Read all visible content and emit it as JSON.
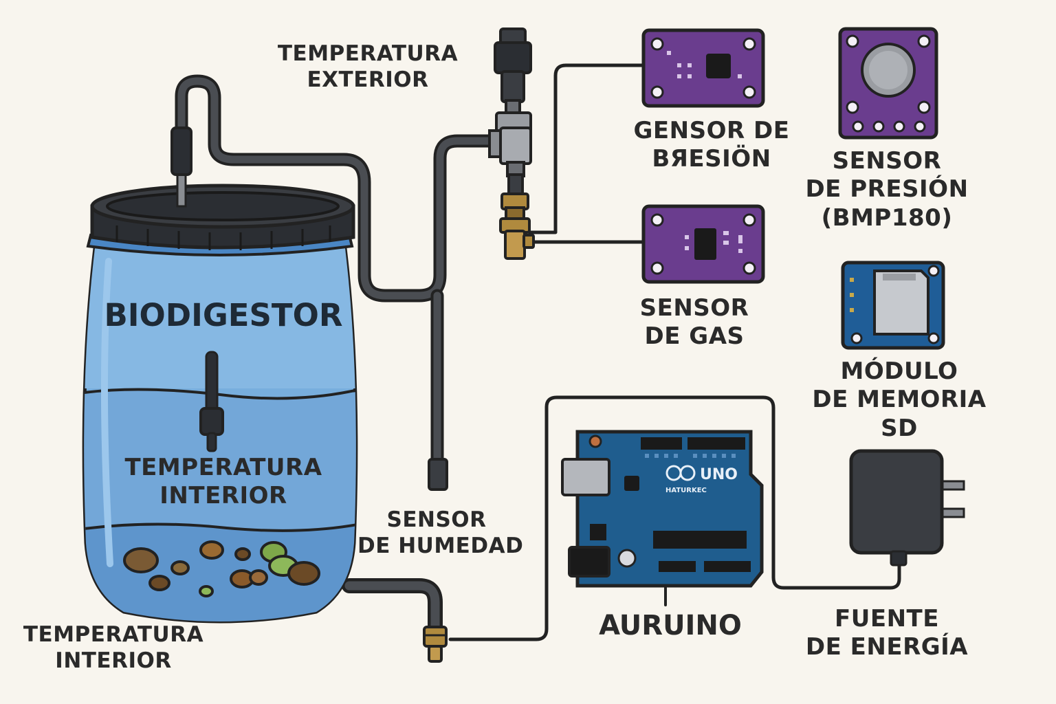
{
  "colors": {
    "background": "#f8f5ee",
    "barrel": "#6fa6d9",
    "barrel_lid": "#2b2e33",
    "sensor_board": "#6a3d8e",
    "sd_board": "#1f5d97",
    "arduino_board": "#1f5d8e",
    "power_supply": "#3a3d42",
    "brass": "#b08a3e",
    "outline": "#222222"
  },
  "labels": {
    "temp_exterior": [
      "TEMPERATURA",
      "EXTERIOR"
    ],
    "biodigestor": "BIODIGESTOR",
    "temp_interior_inside": [
      "TEMPERATURA",
      "INTERIOR"
    ],
    "temp_interior_bottom": [
      "TEMPERATURA",
      "INTERIOR"
    ],
    "sensor_humedad": [
      "SENSOR",
      "DE HUMEDAD"
    ],
    "sensor_presion_mid": [
      "GENSOR DE",
      "BЯESIÖN"
    ],
    "sensor_presion_bmp": [
      "SENSOR",
      "DE PRESIÓN",
      "(BMP180)"
    ],
    "sensor_gas": [
      "SENSOR",
      "DE GAS"
    ],
    "modulo_sd": [
      "MÓDULO",
      "DE MEMORIA",
      "SD"
    ],
    "arduino": "AURUINO",
    "fuente": [
      "FUENTE",
      "DE ENERGÍA"
    ]
  },
  "arduino_board": {
    "model": "UNO",
    "logo_text": "HATURKEC"
  },
  "icons": {
    "barrel": "barrel-icon",
    "probe": "temperature-probe-icon",
    "valve": "valve-fitting-icon",
    "power_adapter": "power-adapter-icon",
    "sd_card": "sd-card-icon",
    "arduino": "arduino-board-icon"
  }
}
